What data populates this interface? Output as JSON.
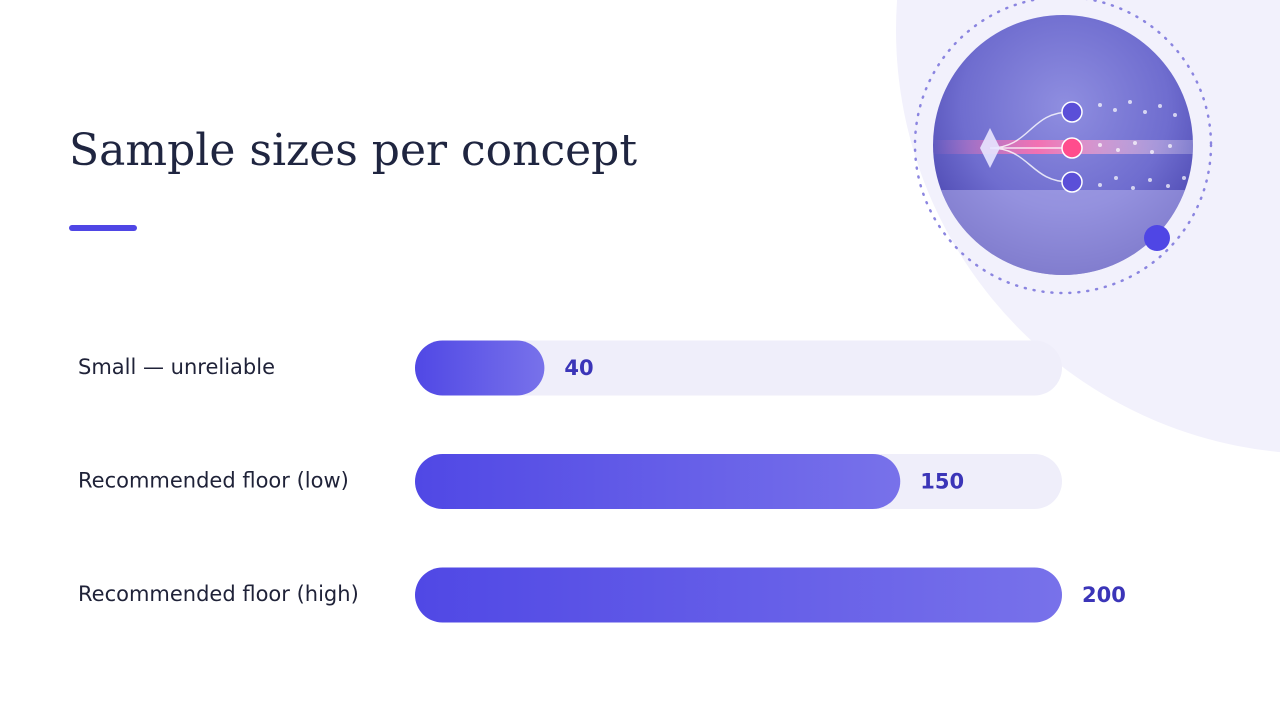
{
  "chart_data": {
    "type": "bar",
    "orientation": "horizontal",
    "title": "Sample sizes per concept",
    "categories": [
      "Small — unreliable",
      "Recommended floor (low)",
      "Recommended floor (high)"
    ],
    "values": [
      40,
      150,
      200
    ],
    "color": "#5048e5",
    "xlim": [
      0,
      200
    ]
  }
}
